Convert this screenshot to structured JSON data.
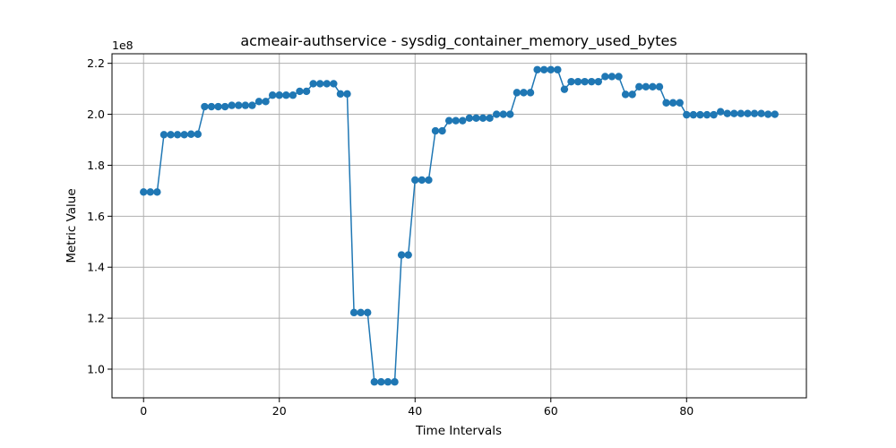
{
  "chart_data": {
    "type": "line",
    "title": "acmeair-authservice - sysdig_container_memory_used_bytes",
    "xlabel": "Time Intervals",
    "ylabel": "Metric Value",
    "y_scale_label": "1e8",
    "xlim": [
      -4.65,
      97.65
    ],
    "ylim": [
      0.8875,
      2.2375
    ],
    "x_ticks": [
      0,
      20,
      40,
      60,
      80
    ],
    "x_tick_labels": [
      "0",
      "20",
      "40",
      "60",
      "80"
    ],
    "y_ticks": [
      1.0,
      1.2,
      1.4,
      1.6,
      1.8,
      2.0,
      2.2
    ],
    "y_tick_labels": [
      "1.0",
      "1.2",
      "1.4",
      "1.6",
      "1.8",
      "2.0",
      "2.2"
    ],
    "grid": true,
    "series_color": "#1f77b4",
    "series": [
      {
        "values": [
          1.695,
          1.695,
          1.695,
          1.92,
          1.92,
          1.92,
          1.92,
          1.922,
          1.922,
          2.03,
          2.03,
          2.03,
          2.03,
          2.035,
          2.035,
          2.035,
          2.035,
          2.05,
          2.05,
          2.075,
          2.075,
          2.075,
          2.075,
          2.09,
          2.09,
          2.12,
          2.12,
          2.12,
          2.12,
          2.08,
          2.08,
          1.222,
          1.222,
          1.222,
          0.95,
          0.95,
          0.95,
          0.95,
          1.448,
          1.448,
          1.742,
          1.742,
          1.742,
          1.935,
          1.935,
          1.975,
          1.975,
          1.975,
          1.985,
          1.985,
          1.985,
          1.985,
          2.0,
          2.0,
          2.0,
          2.085,
          2.085,
          2.085,
          2.175,
          2.175,
          2.175,
          2.175,
          2.098,
          2.128,
          2.128,
          2.128,
          2.128,
          2.128,
          2.148,
          2.148,
          2.148,
          2.078,
          2.078,
          2.108,
          2.108,
          2.108,
          2.108,
          2.045,
          2.045,
          2.045,
          1.998,
          1.998,
          1.998,
          1.998,
          1.998,
          2.01,
          2.003,
          2.003,
          2.003,
          2.003,
          2.003,
          2.003,
          2.0,
          2.0
        ]
      }
    ]
  }
}
